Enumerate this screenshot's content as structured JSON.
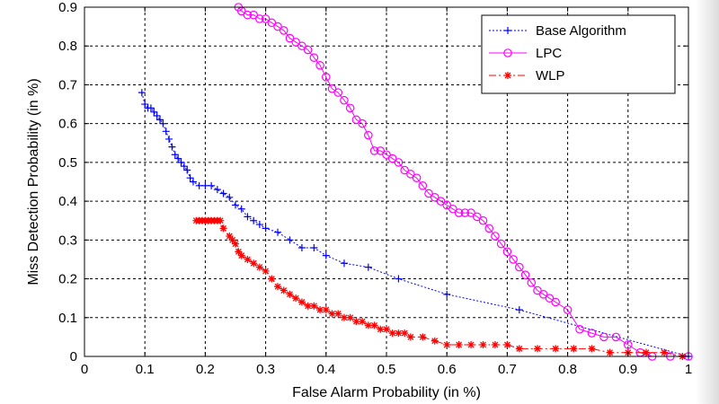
{
  "chart_data": {
    "type": "line",
    "title": "",
    "xlabel": "False Alarm Probability (in %)",
    "ylabel": "Miss Detection Probability (in %)",
    "xlim": [
      0,
      1
    ],
    "ylim": [
      0,
      0.9
    ],
    "xticks": [
      "0",
      "0.1",
      "0.2",
      "0.3",
      "0.4",
      "0.5",
      "0.6",
      "0.7",
      "0.8",
      "0.9",
      "1"
    ],
    "yticks": [
      "0",
      "0.1",
      "0.2",
      "0.3",
      "0.4",
      "0.5",
      "0.6",
      "0.7",
      "0.8",
      "0.9"
    ],
    "grid": true,
    "legend_position": "top-right",
    "series": [
      {
        "name": "Base Algorithm",
        "color": "#0000ff",
        "marker": "plus",
        "line_style": "dotted",
        "x": [
          0.095,
          0.1,
          0.105,
          0.11,
          0.115,
          0.12,
          0.125,
          0.13,
          0.135,
          0.14,
          0.145,
          0.15,
          0.155,
          0.16,
          0.165,
          0.17,
          0.175,
          0.18,
          0.19,
          0.2,
          0.21,
          0.22,
          0.23,
          0.24,
          0.25,
          0.26,
          0.27,
          0.28,
          0.29,
          0.3,
          0.32,
          0.34,
          0.36,
          0.38,
          0.4,
          0.43,
          0.47,
          0.52,
          0.6,
          0.72,
          1.0
        ],
        "y": [
          0.68,
          0.65,
          0.64,
          0.64,
          0.63,
          0.62,
          0.61,
          0.6,
          0.58,
          0.56,
          0.54,
          0.52,
          0.51,
          0.5,
          0.49,
          0.48,
          0.46,
          0.45,
          0.44,
          0.44,
          0.44,
          0.43,
          0.42,
          0.41,
          0.39,
          0.38,
          0.36,
          0.35,
          0.34,
          0.33,
          0.32,
          0.3,
          0.28,
          0.28,
          0.26,
          0.24,
          0.23,
          0.2,
          0.16,
          0.12,
          0.0
        ]
      },
      {
        "name": "LPC",
        "color": "#ff00ff",
        "marker": "circle",
        "line_style": "solid",
        "x": [
          0.255,
          0.26,
          0.27,
          0.28,
          0.29,
          0.3,
          0.31,
          0.32,
          0.33,
          0.34,
          0.35,
          0.36,
          0.37,
          0.38,
          0.39,
          0.4,
          0.41,
          0.42,
          0.43,
          0.44,
          0.45,
          0.46,
          0.47,
          0.48,
          0.49,
          0.5,
          0.51,
          0.52,
          0.53,
          0.54,
          0.55,
          0.56,
          0.57,
          0.58,
          0.59,
          0.6,
          0.61,
          0.62,
          0.63,
          0.64,
          0.65,
          0.66,
          0.67,
          0.68,
          0.69,
          0.7,
          0.71,
          0.72,
          0.73,
          0.74,
          0.75,
          0.76,
          0.77,
          0.78,
          0.8,
          0.82,
          0.84,
          0.86,
          0.88,
          0.9,
          0.92,
          0.94,
          0.97,
          1.0
        ],
        "y": [
          0.9,
          0.89,
          0.88,
          0.88,
          0.87,
          0.87,
          0.86,
          0.85,
          0.84,
          0.82,
          0.81,
          0.8,
          0.79,
          0.77,
          0.75,
          0.72,
          0.69,
          0.68,
          0.66,
          0.64,
          0.61,
          0.6,
          0.57,
          0.53,
          0.53,
          0.52,
          0.51,
          0.5,
          0.48,
          0.47,
          0.46,
          0.44,
          0.42,
          0.41,
          0.4,
          0.39,
          0.38,
          0.37,
          0.37,
          0.37,
          0.36,
          0.35,
          0.33,
          0.31,
          0.29,
          0.27,
          0.25,
          0.23,
          0.21,
          0.19,
          0.17,
          0.16,
          0.15,
          0.14,
          0.12,
          0.07,
          0.06,
          0.05,
          0.05,
          0.03,
          0.01,
          0.0,
          0.0,
          0.0
        ]
      },
      {
        "name": "WLP",
        "color": "#ff0000",
        "marker": "star",
        "line_style": "dashdot",
        "x": [
          0.185,
          0.19,
          0.195,
          0.2,
          0.205,
          0.21,
          0.215,
          0.22,
          0.225,
          0.23,
          0.24,
          0.245,
          0.25,
          0.255,
          0.26,
          0.27,
          0.28,
          0.29,
          0.3,
          0.31,
          0.32,
          0.33,
          0.34,
          0.35,
          0.36,
          0.37,
          0.38,
          0.39,
          0.4,
          0.41,
          0.42,
          0.43,
          0.44,
          0.45,
          0.46,
          0.47,
          0.48,
          0.49,
          0.5,
          0.51,
          0.52,
          0.53,
          0.54,
          0.56,
          0.58,
          0.6,
          0.62,
          0.64,
          0.66,
          0.68,
          0.7,
          0.72,
          0.75,
          0.78,
          0.81,
          0.84,
          0.87,
          0.9,
          0.93,
          0.96,
          0.99
        ],
        "y": [
          0.35,
          0.35,
          0.35,
          0.35,
          0.35,
          0.35,
          0.35,
          0.35,
          0.35,
          0.33,
          0.31,
          0.3,
          0.29,
          0.27,
          0.26,
          0.25,
          0.24,
          0.23,
          0.22,
          0.2,
          0.18,
          0.17,
          0.16,
          0.15,
          0.14,
          0.13,
          0.13,
          0.12,
          0.12,
          0.11,
          0.11,
          0.1,
          0.1,
          0.09,
          0.09,
          0.08,
          0.08,
          0.07,
          0.07,
          0.06,
          0.06,
          0.06,
          0.05,
          0.05,
          0.04,
          0.03,
          0.03,
          0.03,
          0.03,
          0.03,
          0.03,
          0.02,
          0.02,
          0.02,
          0.02,
          0.02,
          0.01,
          0.01,
          0.01,
          0.01,
          0.0
        ]
      }
    ]
  }
}
